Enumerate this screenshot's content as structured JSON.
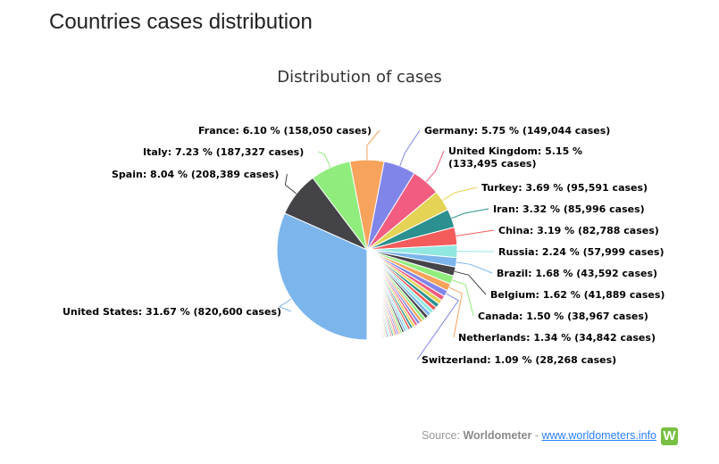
{
  "page": {
    "title": "Countries cases distribution"
  },
  "source": {
    "prefix": "Source:",
    "name": "Worldometer",
    "separator": "-",
    "link": "www.worldometers.info",
    "logo_letter": "W"
  },
  "chart_data": {
    "type": "pie",
    "title": "Distribution of cases",
    "start_angle_deg": 180,
    "direction": "clockwise",
    "slices": [
      {
        "name": "United States",
        "percent": 31.67,
        "cases": 820600,
        "color": "#7cb5ec",
        "label": "United States: 31.67 % (820,600 cases)",
        "side": "left"
      },
      {
        "name": "Spain",
        "percent": 8.04,
        "cases": 208389,
        "color": "#434348",
        "label": "Spain: 8.04 % (208,389 cases)",
        "side": "left"
      },
      {
        "name": "Italy",
        "percent": 7.23,
        "cases": 187327,
        "color": "#90ed7d",
        "label": "Italy: 7.23 % (187,327 cases)",
        "side": "left"
      },
      {
        "name": "France",
        "percent": 6.1,
        "cases": 158050,
        "color": "#f7a35c",
        "label": "France: 6.10 % (158,050 cases)",
        "side": "left"
      },
      {
        "name": "Germany",
        "percent": 5.75,
        "cases": 149044,
        "color": "#8085e9",
        "label": "Germany: 5.75 % (149,044 cases)",
        "side": "right"
      },
      {
        "name": "United Kingdom",
        "percent": 5.15,
        "cases": 133495,
        "color": "#f15c80",
        "label": [
          "United Kingdom: 5.15 %",
          "(133,495 cases)"
        ],
        "side": "right"
      },
      {
        "name": "Turkey",
        "percent": 3.69,
        "cases": 95591,
        "color": "#e4d354",
        "label": "Turkey: 3.69 % (95,591 cases)",
        "side": "right"
      },
      {
        "name": "Iran",
        "percent": 3.32,
        "cases": 85996,
        "color": "#2b908f",
        "label": "Iran: 3.32 % (85,996 cases)",
        "side": "right"
      },
      {
        "name": "China",
        "percent": 3.19,
        "cases": 82788,
        "color": "#f45b5b",
        "label": "China: 3.19 % (82,788 cases)",
        "side": "right"
      },
      {
        "name": "Russia",
        "percent": 2.24,
        "cases": 57999,
        "color": "#91e8e1",
        "label": "Russia: 2.24 % (57,999 cases)",
        "side": "right"
      },
      {
        "name": "Brazil",
        "percent": 1.68,
        "cases": 43592,
        "color": "#7cb5ec",
        "label": "Brazil: 1.68 % (43,592 cases)",
        "side": "right"
      },
      {
        "name": "Belgium",
        "percent": 1.62,
        "cases": 41889,
        "color": "#434348",
        "label": "Belgium: 1.62 % (41,889 cases)",
        "side": "right"
      },
      {
        "name": "Canada",
        "percent": 1.5,
        "cases": 38967,
        "color": "#90ed7d",
        "label": "Canada: 1.50 % (38,967 cases)",
        "side": "right"
      },
      {
        "name": "Netherlands",
        "percent": 1.34,
        "cases": 34842,
        "color": "#f7a35c",
        "label": "Netherlands: 1.34 % (34,842 cases)",
        "side": "right"
      },
      {
        "name": "Switzerland",
        "percent": 1.09,
        "cases": 28268,
        "color": "#8085e9",
        "label": "Switzerland: 1.09 % (28,268 cases)",
        "side": "right"
      }
    ],
    "other_slices": {
      "total_percent": 15.39,
      "colors": [
        "#f15c80",
        "#e4d354",
        "#2b908f",
        "#f45b5b",
        "#91e8e1",
        "#7cb5ec",
        "#434348",
        "#90ed7d",
        "#f7a35c",
        "#8085e9"
      ]
    }
  }
}
